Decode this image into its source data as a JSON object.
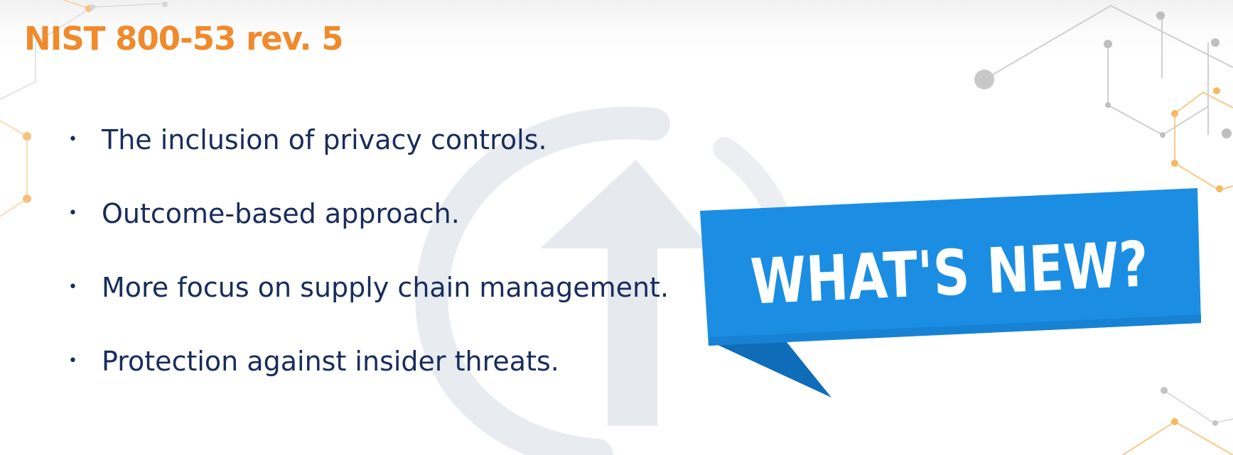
{
  "slide": {
    "title": "NIST 800-53 rev. 5",
    "bullets": [
      "The inclusion of privacy controls.",
      "Outcome-based approach.",
      "More focus on supply chain management.",
      "Protection against insider threats."
    ],
    "bullet_glyph": "•",
    "banner_text": "WHAT'S NEW?"
  },
  "colors": {
    "title": "#f08a2c",
    "bullet_text": "#182c5c",
    "banner_blue": "#1b8ee3",
    "banner_dark_blue": "#0f6cb8",
    "banner_text": "#ffffff",
    "watermark": "#e6e9ee",
    "network_gray": "#c4c4c4",
    "network_orange": "#f6c27a"
  },
  "icons": {
    "watermark": "upward-arrow-circle-watermark",
    "decoration": "network-nodes-decoration"
  }
}
